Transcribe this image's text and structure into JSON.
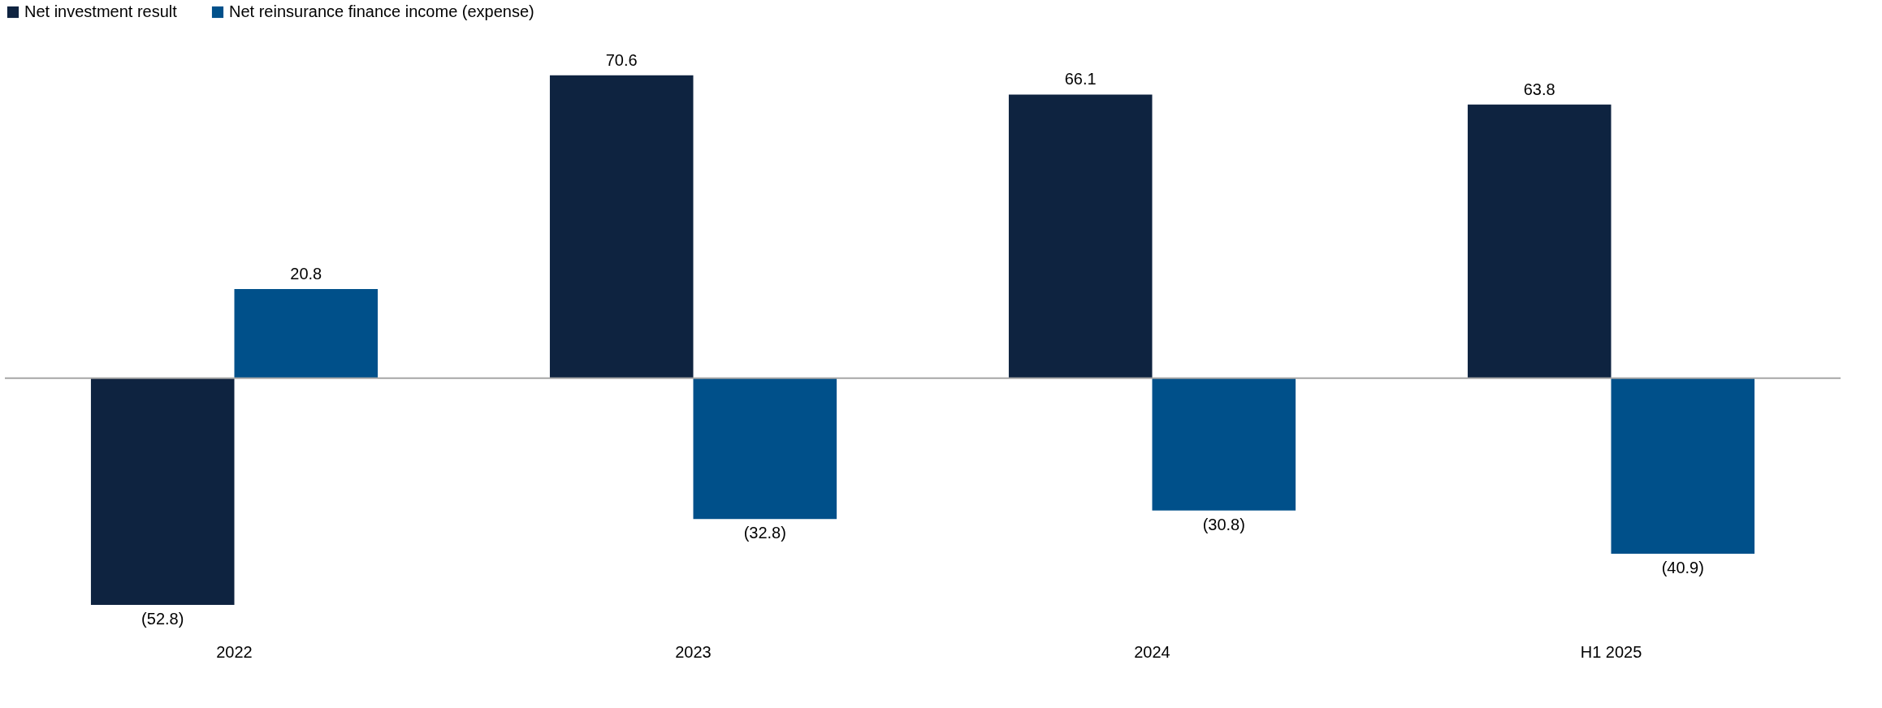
{
  "chart_data": {
    "type": "bar",
    "categories": [
      "2022",
      "2023",
      "2024",
      "H1 2025"
    ],
    "series": [
      {
        "name": "Net investment result",
        "color": "#0e2340",
        "values": [
          -52.8,
          70.6,
          66.1,
          63.8
        ],
        "value_labels": [
          "(52.8)",
          "70.6",
          "66.1",
          "63.8"
        ]
      },
      {
        "name": "Net reinsurance finance income (expense)",
        "color": "#00508a",
        "values": [
          20.8,
          -32.8,
          -30.8,
          -40.9
        ],
        "value_labels": [
          "20.8",
          "(32.8)",
          "(30.8)",
          "(40.9)"
        ]
      }
    ],
    "legend": "top",
    "grid": false
  }
}
